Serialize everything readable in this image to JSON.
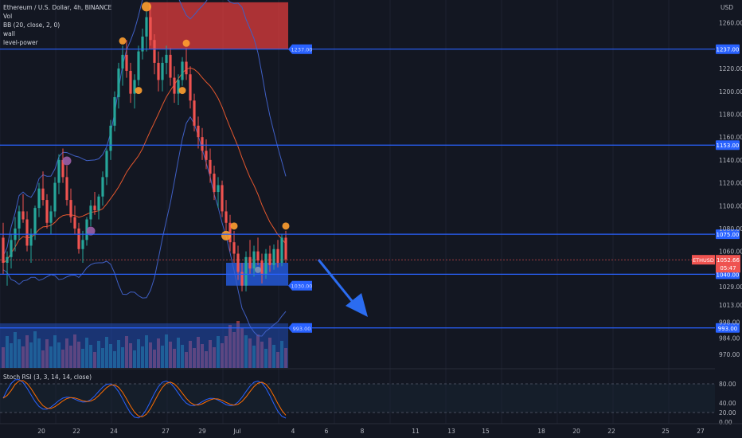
{
  "header": {
    "title": "Ethereum / U.S. Dollar, 4h, BINANCE",
    "indicators": [
      "Vol",
      "BB (20, close, 2, 0)",
      "wall",
      "level-power"
    ],
    "rsi_label": "Stoch RSI (3, 3, 14, 14, close)"
  },
  "price_axis": {
    "currency": "USD",
    "ticks": [
      "1260.00",
      "1220.00",
      "1200.00",
      "1180.00",
      "1160.00",
      "1140.00",
      "1120.00",
      "1100.00",
      "1080.00",
      "1060.00",
      "1029.00",
      "1013.00",
      "998.00",
      "984.00",
      "970.00"
    ],
    "current_symbol": "ETHUSD",
    "current_price": "1052.66",
    "countdown": "05:47"
  },
  "rsi_axis": {
    "ticks": [
      "80.00",
      "40.00",
      "20.00",
      "0.00"
    ]
  },
  "time_axis": {
    "ticks": [
      "20",
      "22",
      "24",
      "27",
      "29",
      "Jul",
      "4",
      "6",
      "8",
      "11",
      "13",
      "15",
      "18",
      "20",
      "22",
      "25",
      "27"
    ]
  },
  "levels": [
    {
      "price": "1237.00",
      "label": "1237.00"
    },
    {
      "price": "1153.00",
      "label": "1153.00"
    },
    {
      "price": "1075.00",
      "label": "1075.00"
    },
    {
      "price": "1040.00",
      "label": "1040.00"
    },
    {
      "price": "993.00",
      "label": "993.00"
    }
  ],
  "zone_labels": [
    "1237.00",
    "1030.00",
    "993.00"
  ],
  "colors": {
    "background": "#131722",
    "up": "#26a69a",
    "down": "#ef5350",
    "level_line": "#2962ff",
    "supply_zone": "#e03c3c",
    "demand_zone": "#2458d6",
    "bb_band": "#3f5fc4",
    "bb_basis": "#e4572e",
    "arrow": "#2b6cf0",
    "marker_orange": "#ff9f30",
    "marker_purple": "#9c5fa8",
    "marker_blue": "#7f95b3",
    "rsi_k": "#2962ff",
    "rsi_d": "#ff6d00"
  },
  "chart_data": {
    "type": "candlestick",
    "symbol": "ETHUSD",
    "timeframe": "4h",
    "ylim": [
      958,
      1280
    ],
    "candles": [
      [
        1072,
        1085,
        1040,
        1050
      ],
      [
        1050,
        1060,
        1030,
        1055
      ],
      [
        1055,
        1075,
        1045,
        1070
      ],
      [
        1070,
        1090,
        1060,
        1080
      ],
      [
        1080,
        1100,
        1070,
        1095
      ],
      [
        1095,
        1110,
        1085,
        1088
      ],
      [
        1088,
        1095,
        1060,
        1065
      ],
      [
        1065,
        1080,
        1050,
        1075
      ],
      [
        1075,
        1100,
        1070,
        1098
      ],
      [
        1098,
        1120,
        1090,
        1115
      ],
      [
        1115,
        1130,
        1100,
        1105
      ],
      [
        1105,
        1110,
        1080,
        1085
      ],
      [
        1085,
        1100,
        1075,
        1095
      ],
      [
        1095,
        1125,
        1090,
        1120
      ],
      [
        1120,
        1145,
        1110,
        1140
      ],
      [
        1140,
        1150,
        1120,
        1125
      ],
      [
        1125,
        1135,
        1100,
        1105
      ],
      [
        1105,
        1115,
        1085,
        1090
      ],
      [
        1090,
        1100,
        1075,
        1080
      ],
      [
        1080,
        1085,
        1058,
        1062
      ],
      [
        1062,
        1078,
        1050,
        1070
      ],
      [
        1070,
        1090,
        1065,
        1088
      ],
      [
        1088,
        1105,
        1082,
        1100
      ],
      [
        1100,
        1112,
        1092,
        1096
      ],
      [
        1096,
        1110,
        1088,
        1108
      ],
      [
        1108,
        1130,
        1100,
        1125
      ],
      [
        1125,
        1150,
        1118,
        1148
      ],
      [
        1148,
        1175,
        1140,
        1170
      ],
      [
        1170,
        1200,
        1165,
        1195
      ],
      [
        1195,
        1225,
        1185,
        1220
      ],
      [
        1220,
        1240,
        1205,
        1232
      ],
      [
        1232,
        1245,
        1212,
        1218
      ],
      [
        1218,
        1225,
        1190,
        1198
      ],
      [
        1198,
        1215,
        1185,
        1210
      ],
      [
        1210,
        1240,
        1205,
        1235
      ],
      [
        1235,
        1255,
        1228,
        1248
      ],
      [
        1248,
        1270,
        1235,
        1265
      ],
      [
        1265,
        1275,
        1240,
        1245
      ],
      [
        1245,
        1250,
        1215,
        1225
      ],
      [
        1225,
        1235,
        1200,
        1210
      ],
      [
        1210,
        1230,
        1200,
        1225
      ],
      [
        1225,
        1240,
        1215,
        1232
      ],
      [
        1232,
        1238,
        1205,
        1212
      ],
      [
        1212,
        1222,
        1190,
        1198
      ],
      [
        1198,
        1215,
        1188,
        1210
      ],
      [
        1210,
        1230,
        1205,
        1226
      ],
      [
        1226,
        1238,
        1210,
        1215
      ],
      [
        1215,
        1222,
        1185,
        1192
      ],
      [
        1192,
        1198,
        1165,
        1170
      ],
      [
        1170,
        1178,
        1150,
        1160
      ],
      [
        1160,
        1168,
        1140,
        1148
      ],
      [
        1148,
        1158,
        1132,
        1140
      ],
      [
        1140,
        1150,
        1120,
        1128
      ],
      [
        1128,
        1135,
        1105,
        1112
      ],
      [
        1112,
        1125,
        1098,
        1118
      ],
      [
        1118,
        1122,
        1090,
        1095
      ],
      [
        1095,
        1105,
        1078,
        1085
      ],
      [
        1085,
        1092,
        1060,
        1068
      ],
      [
        1068,
        1078,
        1050,
        1058
      ],
      [
        1058,
        1065,
        1035,
        1042
      ],
      [
        1042,
        1050,
        1025,
        1030
      ],
      [
        1030,
        1060,
        1025,
        1055
      ],
      [
        1055,
        1070,
        1040,
        1045
      ],
      [
        1045,
        1065,
        1038,
        1060
      ],
      [
        1060,
        1072,
        1048,
        1052
      ],
      [
        1052,
        1058,
        1032,
        1040
      ],
      [
        1040,
        1062,
        1036,
        1058
      ],
      [
        1058,
        1065,
        1042,
        1048
      ],
      [
        1048,
        1066,
        1044,
        1062
      ],
      [
        1062,
        1070,
        1046,
        1050
      ],
      [
        1050,
        1075,
        1047,
        1072
      ],
      [
        1072,
        1078,
        1050,
        1053
      ]
    ],
    "current_price": 1052.66,
    "horizontal_levels": [
      1237,
      1153,
      1075,
      1040,
      993
    ],
    "supply_zone": {
      "from_bar": 37,
      "low": 1237,
      "high": 1278
    },
    "demand_zones": [
      {
        "from_bar": 56,
        "low": 1030,
        "high": 1050
      },
      {
        "from_bar": 56,
        "low": 993,
        "high": 998
      }
    ],
    "stoch_rsi": {
      "ylim": [
        0,
        100
      ],
      "upper_band": 80,
      "lower_band": 20
    }
  }
}
